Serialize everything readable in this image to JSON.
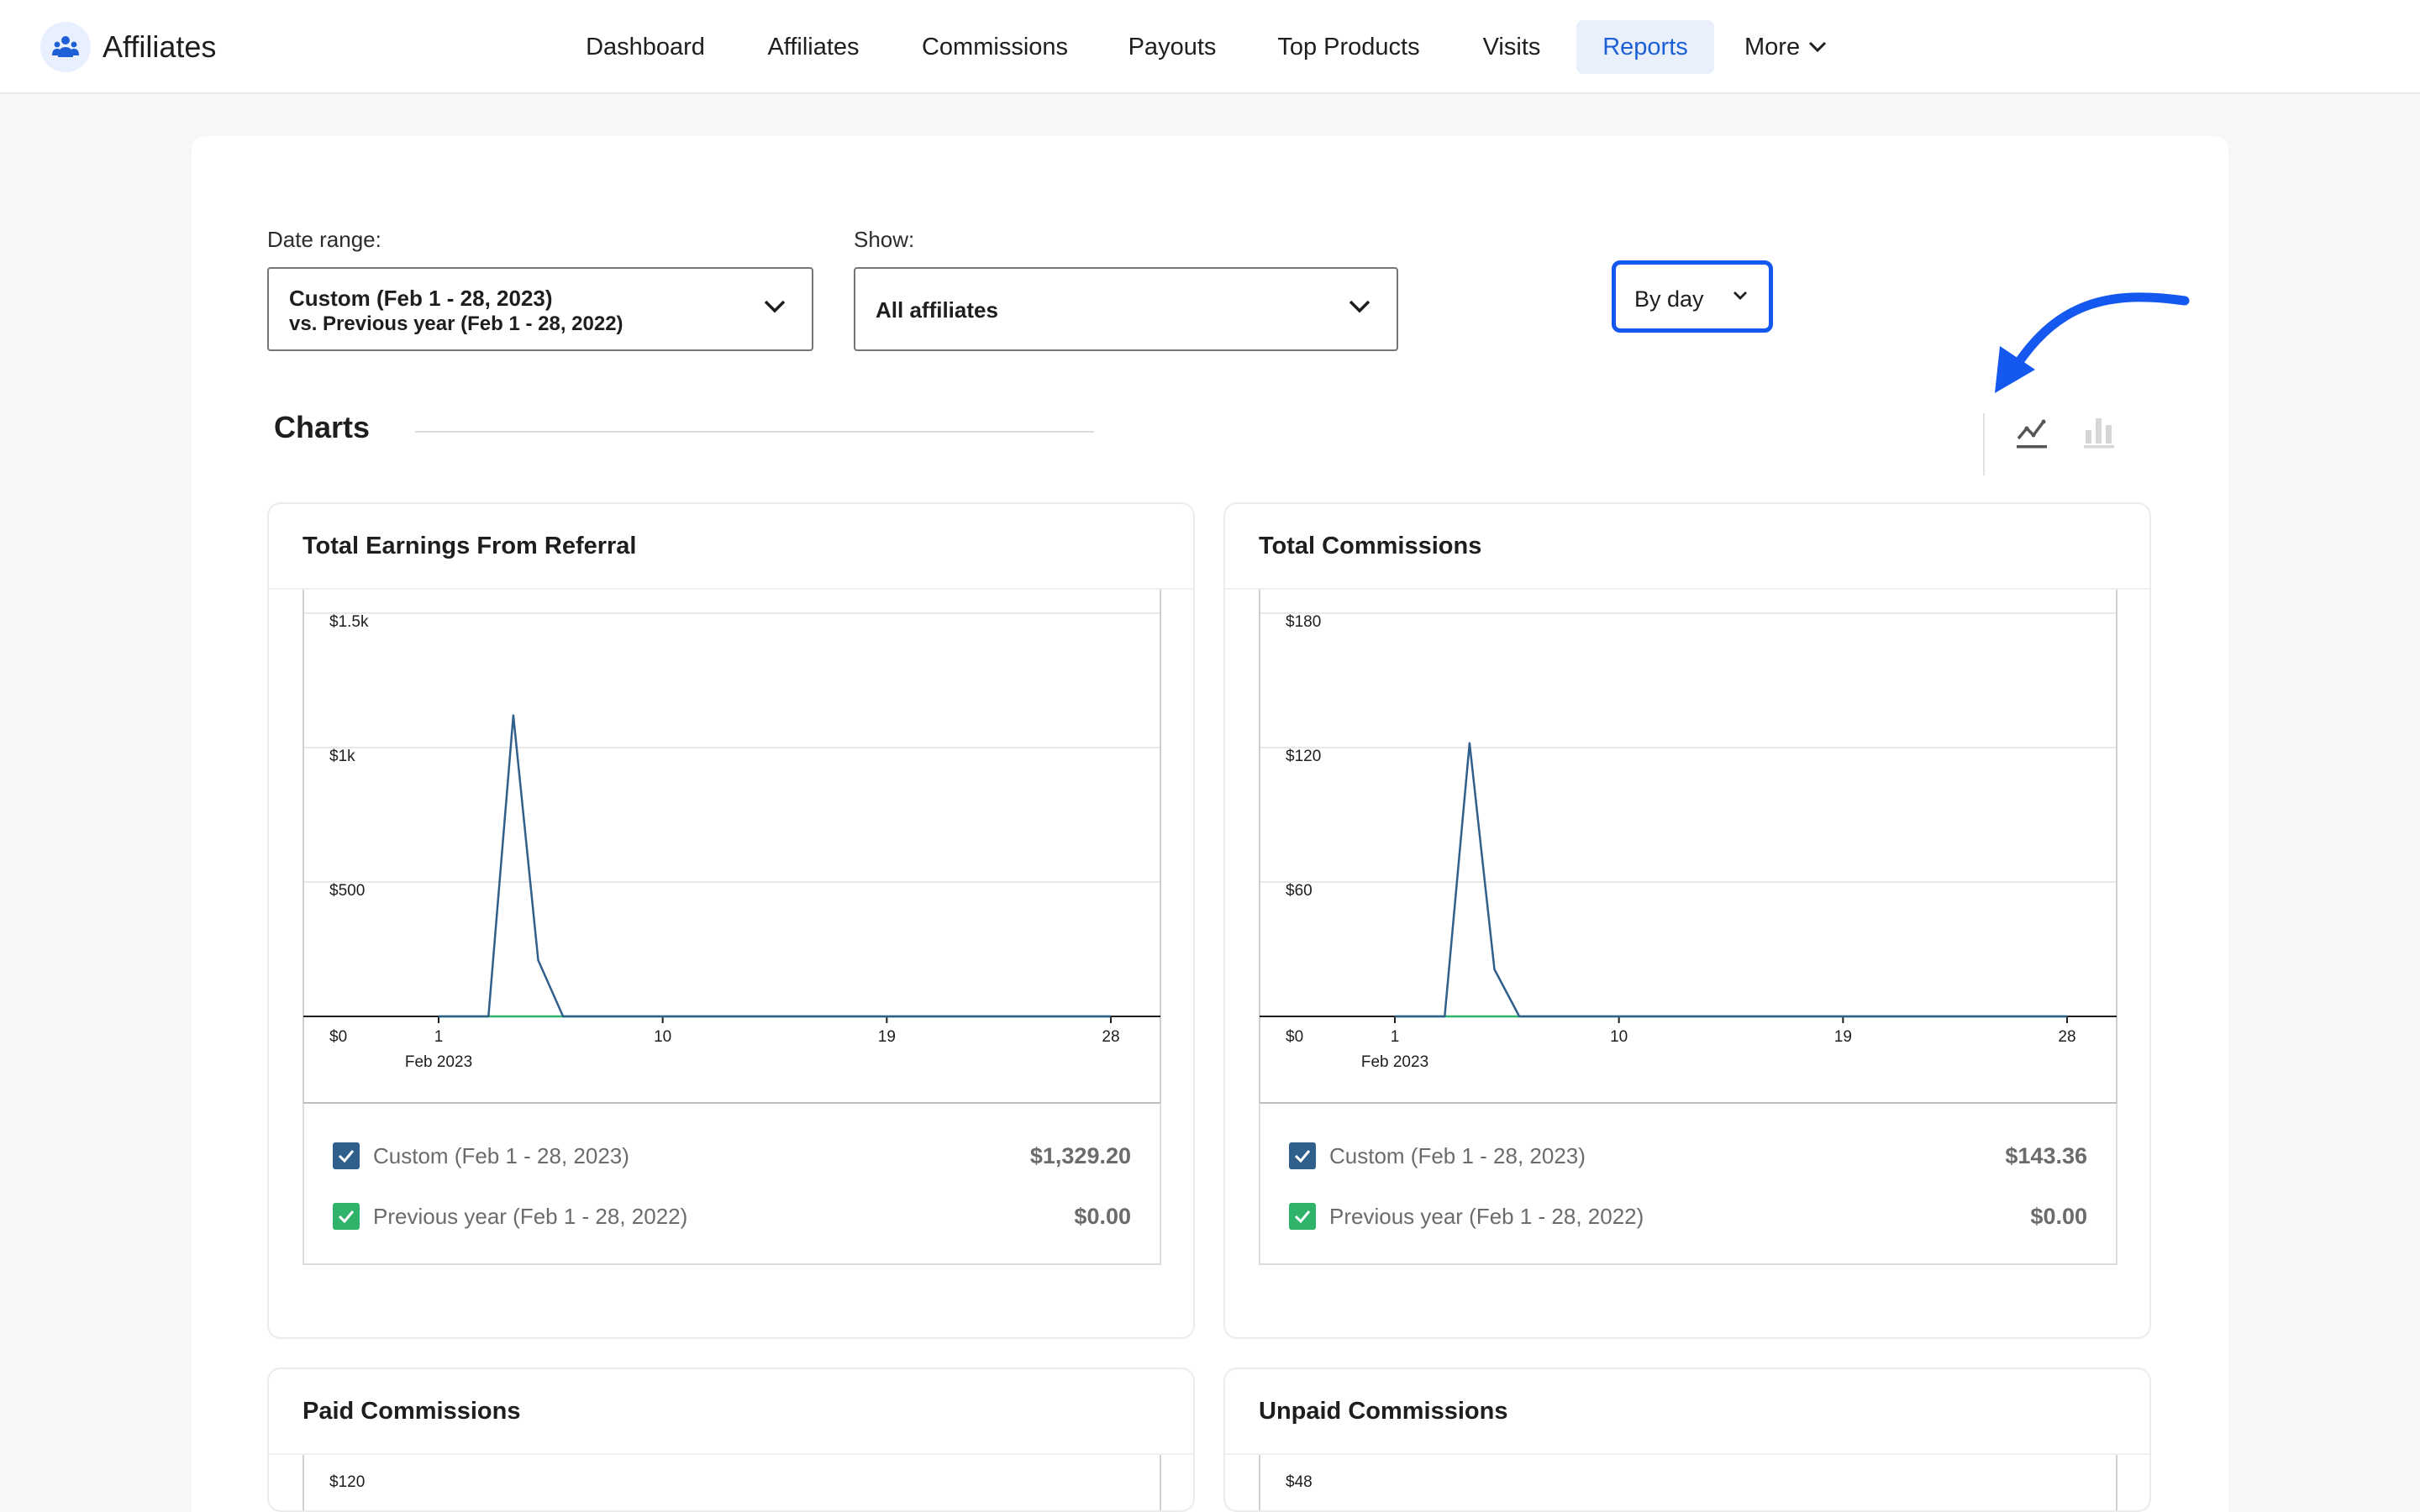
{
  "app": {
    "name": "Affiliates"
  },
  "nav": {
    "items": [
      {
        "label": "Dashboard",
        "active": false
      },
      {
        "label": "Affiliates",
        "active": false
      },
      {
        "label": "Commissions",
        "active": false
      },
      {
        "label": "Payouts",
        "active": false
      },
      {
        "label": "Top Products",
        "active": false
      },
      {
        "label": "Visits",
        "active": false
      },
      {
        "label": "Reports",
        "active": true
      }
    ],
    "more_label": "More"
  },
  "filters": {
    "date_range": {
      "label": "Date range:",
      "value_line1": "Custom (Feb 1 - 28, 2023)",
      "value_line2": "vs. Previous year (Feb 1 - 28, 2022)"
    },
    "show": {
      "label": "Show:",
      "value": "All affiliates"
    }
  },
  "charts_section": {
    "title": "Charts",
    "interval": "By day",
    "chart_type_options": [
      "line-chart-icon",
      "bar-chart-icon"
    ],
    "active_chart_type": "line"
  },
  "colors": {
    "accent": "#1d5fd6",
    "annotation": "#1558f0",
    "series_current": "#2f5f8a",
    "series_previous": "#2fb36b"
  },
  "cards": [
    {
      "title": "Total Earnings From Referral",
      "legend": [
        {
          "label": "Custom (Feb 1 - 28, 2023)",
          "value": "$1,329.20"
        },
        {
          "label": "Previous year (Feb 1 - 28, 2022)",
          "value": "$0.00"
        }
      ]
    },
    {
      "title": "Total Commissions",
      "legend": [
        {
          "label": "Custom (Feb 1 - 28, 2023)",
          "value": "$143.36"
        },
        {
          "label": "Previous year (Feb 1 - 28, 2022)",
          "value": "$0.00"
        }
      ]
    },
    {
      "title": "Paid Commissions"
    },
    {
      "title": "Unpaid Commissions"
    }
  ],
  "chart_data": [
    {
      "type": "line",
      "title": "Total Earnings From Referral",
      "x_ticks": [
        "1",
        "10",
        "19",
        "28"
      ],
      "x_sublabel": "Feb 2023",
      "y_ticks": [
        "$0",
        "$500",
        "$1k",
        "$1.5k"
      ],
      "ylim": [
        0,
        1500
      ],
      "x": [
        1,
        2,
        3,
        4,
        5,
        6,
        7,
        8,
        9,
        10,
        11,
        12,
        13,
        14,
        15,
        16,
        17,
        18,
        19,
        20,
        21,
        22,
        23,
        24,
        25,
        26,
        27,
        28
      ],
      "series": [
        {
          "name": "Custom (Feb 1 - 28, 2023)",
          "values": [
            0,
            0,
            0,
            1120,
            209,
            0,
            0,
            0,
            0,
            0,
            0,
            0,
            0,
            0,
            0,
            0,
            0,
            0,
            0,
            0,
            0,
            0,
            0,
            0,
            0,
            0,
            0,
            0
          ]
        },
        {
          "name": "Previous year (Feb 1 - 28, 2022)",
          "values": [
            0,
            0,
            0,
            0,
            0,
            0,
            0,
            0,
            0,
            0,
            0,
            0,
            0,
            0,
            0,
            0,
            0,
            0,
            0,
            0,
            0,
            0,
            0,
            0,
            0,
            0,
            0,
            0
          ]
        }
      ],
      "grid": true
    },
    {
      "type": "line",
      "title": "Total Commissions",
      "x_ticks": [
        "1",
        "10",
        "19",
        "28"
      ],
      "x_sublabel": "Feb 2023",
      "y_ticks": [
        "$0",
        "$60",
        "$120",
        "$180"
      ],
      "ylim": [
        0,
        180
      ],
      "x": [
        1,
        2,
        3,
        4,
        5,
        6,
        7,
        8,
        9,
        10,
        11,
        12,
        13,
        14,
        15,
        16,
        17,
        18,
        19,
        20,
        21,
        22,
        23,
        24,
        25,
        26,
        27,
        28
      ],
      "series": [
        {
          "name": "Custom (Feb 1 - 28, 2023)",
          "values": [
            0,
            0,
            0,
            122,
            21,
            0,
            0,
            0,
            0,
            0,
            0,
            0,
            0,
            0,
            0,
            0,
            0,
            0,
            0,
            0,
            0,
            0,
            0,
            0,
            0,
            0,
            0,
            0
          ]
        },
        {
          "name": "Previous year (Feb 1 - 28, 2022)",
          "values": [
            0,
            0,
            0,
            0,
            0,
            0,
            0,
            0,
            0,
            0,
            0,
            0,
            0,
            0,
            0,
            0,
            0,
            0,
            0,
            0,
            0,
            0,
            0,
            0,
            0,
            0,
            0,
            0
          ]
        }
      ],
      "grid": true
    },
    {
      "type": "line",
      "title": "Paid Commissions",
      "y_ticks": [
        "$120"
      ],
      "grid": true
    },
    {
      "type": "line",
      "title": "Unpaid Commissions",
      "y_ticks": [
        "$48"
      ],
      "grid": true
    }
  ]
}
